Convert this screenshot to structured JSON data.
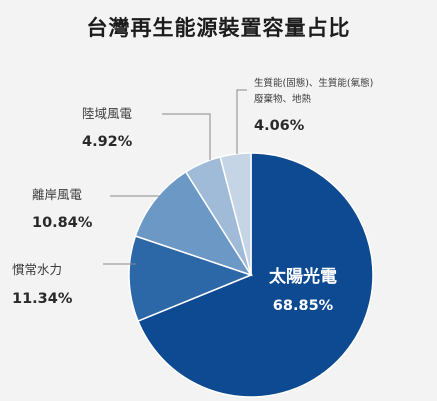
{
  "chart_data": {
    "type": "pie",
    "title": "台灣再生能源裝置容量占比",
    "start_angle_deg": 0,
    "direction": "clockwise",
    "slices": [
      {
        "label": "太陽光電",
        "label_line2": "",
        "value": 68.85,
        "value_text": "68.85%",
        "color": "#0e4a91",
        "label_placement": "inside"
      },
      {
        "label": "慣常水力",
        "label_line2": "",
        "value": 11.34,
        "value_text": "11.34%",
        "color": "#2c67a8",
        "label_placement": "outside-left"
      },
      {
        "label": "離岸風電",
        "label_line2": "",
        "value": 10.84,
        "value_text": "10.84%",
        "color": "#6c98c5",
        "label_placement": "outside-left"
      },
      {
        "label": "陸域風電",
        "label_line2": "",
        "value": 4.92,
        "value_text": "4.92%",
        "color": "#9fbbd8",
        "label_placement": "outside-top-left"
      },
      {
        "label": "生質能(固態)、生質能(氣態)",
        "label_line2": "廢棄物、地熱",
        "value": 4.06,
        "value_text": "4.06%",
        "color": "#c6d5e6",
        "label_placement": "outside-top-right"
      }
    ]
  }
}
